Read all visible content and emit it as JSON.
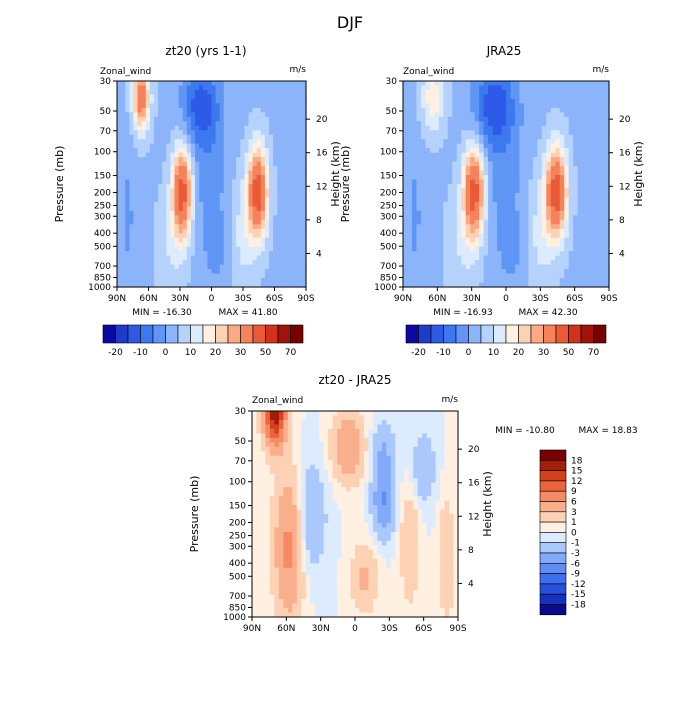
{
  "figure": {
    "title": "DJF"
  },
  "chart_data": [
    {
      "type": "heatmap",
      "title": "zt20 (yrs 1-1)",
      "variable": "Zonal_wind",
      "units": "m/s",
      "xlabel": "",
      "ylabel": "Pressure (mb)",
      "ylabel_right": "Height (km)",
      "x_ticks": [
        "90N",
        "60N",
        "30N",
        "0",
        "30S",
        "60S",
        "90S"
      ],
      "y_ticks": [
        "30",
        "50",
        "70",
        "100",
        "150",
        "200",
        "250",
        "300",
        "400",
        "500",
        "700",
        "850",
        "1000"
      ],
      "height_ticks": [
        "4",
        "8",
        "12",
        "16",
        "20"
      ],
      "ylim": [
        1000,
        30
      ],
      "min_label": "MIN = -16.30",
      "max_label": "MAX =  41.80",
      "colorbar_labels": [
        "-20",
        "-10",
        "0",
        "10",
        "20",
        "30",
        "50",
        "70"
      ],
      "features": [
        {
          "lat": 67,
          "p": 45,
          "value": 30
        },
        {
          "lat": 28,
          "p": 200,
          "value": 40
        },
        {
          "lat": -45,
          "p": 200,
          "value": 40
        },
        {
          "lat": 10,
          "p": 50,
          "value": -16
        },
        {
          "lat": 0,
          "p": 150,
          "value": -5
        },
        {
          "lat": 75,
          "p": 300,
          "value": -5
        }
      ]
    },
    {
      "type": "heatmap",
      "title": "JRA25",
      "variable": "Zonal_wind",
      "units": "m/s",
      "xlabel": "",
      "ylabel": "Pressure (mb)",
      "ylabel_right": "Height (km)",
      "x_ticks": [
        "90N",
        "60N",
        "30N",
        "0",
        "30S",
        "60S",
        "90S"
      ],
      "y_ticks": [
        "30",
        "50",
        "70",
        "100",
        "150",
        "200",
        "250",
        "300",
        "400",
        "500",
        "700",
        "850",
        "1000"
      ],
      "height_ticks": [
        "4",
        "8",
        "12",
        "16",
        "20"
      ],
      "ylim": [
        1000,
        30
      ],
      "min_label": "MIN = -16.93",
      "max_label": "MAX =  42.30",
      "colorbar_labels": [
        "-20",
        "-10",
        "0",
        "10",
        "20",
        "30",
        "50",
        "70"
      ],
      "features": [
        {
          "lat": 65,
          "p": 40,
          "value": 15
        },
        {
          "lat": 28,
          "p": 200,
          "value": 40
        },
        {
          "lat": -43,
          "p": 200,
          "value": 42
        },
        {
          "lat": 10,
          "p": 45,
          "value": -17
        },
        {
          "lat": 0,
          "p": 200,
          "value": -8
        },
        {
          "lat": 75,
          "p": 250,
          "value": -5
        }
      ]
    },
    {
      "type": "heatmap",
      "title": "zt20 - JRA25",
      "variable": "Zonal_wind",
      "units": "m/s",
      "xlabel": "",
      "ylabel": "Pressure (mb)",
      "ylabel_right": "Height (km)",
      "x_ticks": [
        "90N",
        "60N",
        "30N",
        "0",
        "30S",
        "60S",
        "90S"
      ],
      "y_ticks": [
        "30",
        "50",
        "70",
        "100",
        "150",
        "200",
        "250",
        "300",
        "400",
        "500",
        "700",
        "850",
        "1000"
      ],
      "height_ticks": [
        "4",
        "8",
        "12",
        "16",
        "20"
      ],
      "ylim": [
        1000,
        30
      ],
      "min_label": "MIN = -10.80",
      "max_label": "MAX =  18.83",
      "colorbar_labels": [
        "18",
        "15",
        "12",
        "9",
        "6",
        "3",
        "1",
        "0",
        "-1",
        "-3",
        "-6",
        "-9",
        "-12",
        "-15",
        "-18"
      ],
      "features": [
        {
          "lat": 70,
          "p": 35,
          "value": 18
        },
        {
          "lat": 5,
          "p": 50,
          "value": 6
        },
        {
          "lat": -5,
          "p": 500,
          "value": 3
        },
        {
          "lat": -20,
          "p": 150,
          "value": -6
        },
        {
          "lat": -48,
          "p": 350,
          "value": 3
        },
        {
          "lat": -78,
          "p": 400,
          "value": 3
        },
        {
          "lat": 40,
          "p": 200,
          "value": -3
        }
      ]
    }
  ]
}
